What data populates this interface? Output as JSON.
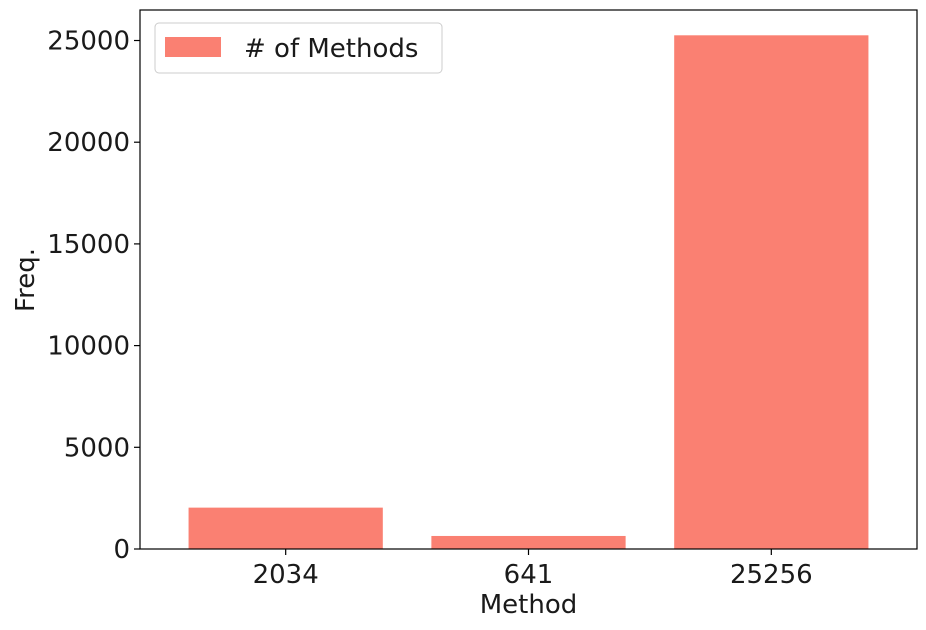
{
  "chart_data": {
    "type": "bar",
    "categories": [
      "2034",
      "641",
      "25256"
    ],
    "series": [
      {
        "name": "# of Methods",
        "values": [
          2034,
          641,
          25256
        ],
        "color": "#fa8072"
      }
    ],
    "xlabel": "Method",
    "ylabel": "Freq.",
    "ylim": [
      0,
      26500
    ],
    "yticks": [
      0,
      5000,
      10000,
      15000,
      20000,
      25000
    ],
    "ytick_labels": [
      "0",
      "5000",
      "10000",
      "15000",
      "20000",
      "25000"
    ],
    "grid": false,
    "legend_position": "top-left"
  }
}
